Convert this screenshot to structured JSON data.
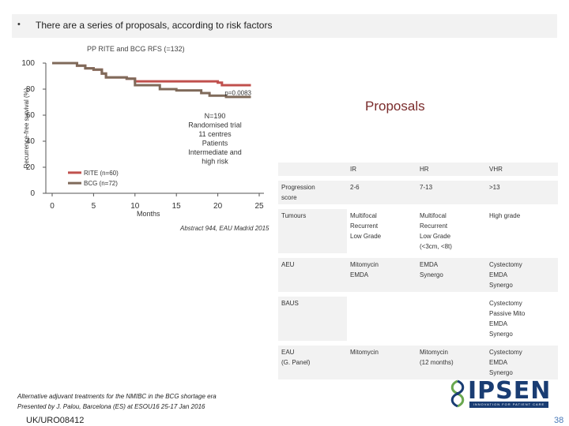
{
  "header": {
    "bullet": "•",
    "title": "There are a series of proposals, according to risk factors"
  },
  "chart_data": {
    "type": "line",
    "title": "PP RITE and BCG RFS (=132)",
    "xlabel": "Months",
    "ylabel": "Recurrence-free survival (%)",
    "xlim": [
      0,
      25
    ],
    "ylim": [
      0,
      100
    ],
    "xticks": [
      "0",
      "5",
      "10",
      "15",
      "20",
      "25"
    ],
    "yticks": [
      "0",
      "20",
      "40",
      "60",
      "80",
      "100"
    ],
    "pvalue": "p=0.0083",
    "annotation": [
      "N=190",
      "Randomised trial",
      "11 centres",
      "Patients",
      "Intermediate and",
      "high risk"
    ],
    "series": [
      {
        "name": "RITE (n=60)",
        "color": "#c0504d",
        "x": [
          0,
          3,
          3,
          4,
          4,
          5,
          5,
          6,
          6,
          6.5,
          6.5,
          9,
          9,
          10,
          10,
          20,
          20,
          20.5,
          20.5,
          24
        ],
        "y": [
          100,
          100,
          98,
          98,
          96,
          96,
          95,
          95,
          92,
          92,
          89,
          89,
          88,
          88,
          86,
          86,
          85,
          85,
          83,
          83
        ]
      },
      {
        "name": "BCG (n=72)",
        "color": "#7f6a5a",
        "x": [
          0,
          3,
          3,
          4,
          4,
          5,
          5,
          6,
          6,
          6.5,
          6.5,
          9,
          9,
          10,
          10,
          13,
          13,
          15,
          15,
          18,
          18,
          19,
          19,
          21,
          21,
          24
        ],
        "y": [
          100,
          100,
          98,
          98,
          96,
          96,
          95,
          95,
          92,
          92,
          89,
          89,
          88,
          88,
          83,
          83,
          80,
          80,
          79,
          79,
          77,
          77,
          75,
          75,
          74,
          74
        ]
      }
    ]
  },
  "reference": "Abstract 944, EAU Madrid 2015",
  "proposals": {
    "title": "Proposals",
    "header": [
      "",
      "IR",
      "HR",
      "VHR"
    ],
    "rows": [
      {
        "label": [
          "Progression",
          "score"
        ],
        "ir": [
          "2-6"
        ],
        "hr": [
          "7-13"
        ],
        "vhr": [
          ">13"
        ]
      },
      {
        "label": [
          "Tumours"
        ],
        "ir": [
          "Multifocal",
          "Recurrent",
          "Low Grade"
        ],
        "hr": [
          "Multifocal",
          "Recurrent",
          "Low Grade",
          "(<3cm, <8t)"
        ],
        "vhr": [
          "High grade"
        ]
      },
      {
        "label": [
          "AEU"
        ],
        "ir": [
          "Mitomycin",
          "EMDA"
        ],
        "hr": [
          "EMDA",
          "Synergo"
        ],
        "vhr": [
          "Cystectomy",
          "EMDA",
          "Synergo"
        ]
      },
      {
        "label": [
          "BAUS"
        ],
        "ir": [],
        "hr": [],
        "vhr": [
          "Cystectomy",
          "Passive Mito",
          "EMDA",
          "Synergo"
        ]
      },
      {
        "label": [
          "EAU",
          "(G. Panel)"
        ],
        "ir": [
          "Mitomycin"
        ],
        "hr": [
          "Mitomycin",
          "(12 months)"
        ],
        "vhr": [
          "Cystectomy",
          "EMDA",
          "Synergo"
        ]
      }
    ]
  },
  "footer": {
    "line1": "Alternative adjuvant treatments for the NMIBC in the BCG shortage era",
    "line2": "Presented by J. Palou, Barcelona (ES) at ESOU16 25-17 Jan 2016",
    "code": "UK/URO08412",
    "page": "38",
    "logo_text": "IPSEN",
    "logo_band": "INNOVATION FOR PATIENT CARE"
  }
}
